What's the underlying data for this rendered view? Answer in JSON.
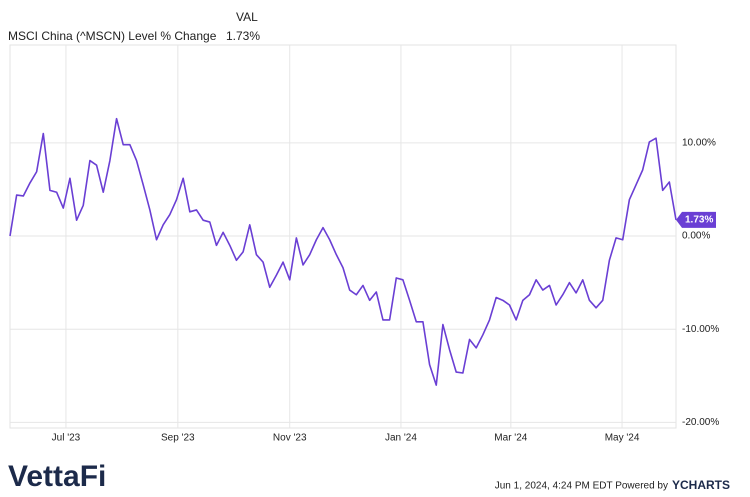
{
  "chart_data": {
    "type": "line",
    "legend_header": "VAL",
    "series": [
      {
        "name": "MSCI China (^MSCN) Level % Change",
        "color": "#6a3fd4",
        "last_label": "1.73%",
        "values": [
          0,
          4.4,
          4.3,
          5.7,
          6.9,
          11.0,
          4.9,
          4.7,
          3.0,
          6.2,
          1.7,
          3.3,
          8.1,
          7.6,
          4.7,
          8.1,
          12.6,
          9.8,
          9.8,
          8.1,
          5.5,
          2.8,
          -0.4,
          1.2,
          2.3,
          3.9,
          6.2,
          2.6,
          2.8,
          1.7,
          1.5,
          -1.0,
          0.4,
          -1.0,
          -2.6,
          -1.7,
          1.2,
          -2.0,
          -2.8,
          -5.5,
          -4.2,
          -2.8,
          -4.7,
          -0.2,
          -3.1,
          -2.0,
          -0.4,
          0.9,
          -0.4,
          -2.0,
          -3.4,
          -5.8,
          -6.3,
          -5.3,
          -6.9,
          -6.0,
          -9.0,
          -9.0,
          -4.5,
          -4.7,
          -6.9,
          -9.2,
          -9.2,
          -13.8,
          -16.0,
          -9.5,
          -12.2,
          -14.6,
          -14.7,
          -11.1,
          -12.0,
          -10.6,
          -9.0,
          -6.6,
          -6.9,
          -7.4,
          -9.0,
          -6.9,
          -6.3,
          -4.7,
          -5.8,
          -5.3,
          -7.4,
          -6.3,
          -5.0,
          -6.1,
          -4.7,
          -6.9,
          -7.7,
          -6.9,
          -2.6,
          -0.2,
          -0.4,
          3.9,
          5.5,
          7.1,
          10.1,
          10.5,
          4.9,
          5.8,
          1.73
        ]
      }
    ],
    "xlim": [
      0,
      100
    ],
    "xticks": [
      {
        "value": 8.4,
        "label": "Jul '23"
      },
      {
        "value": 25.2,
        "label": "Sep '23"
      },
      {
        "value": 42,
        "label": "Nov '23"
      },
      {
        "value": 58.7,
        "label": "Jan '24"
      },
      {
        "value": 75.2,
        "label": "Mar '24"
      },
      {
        "value": 91.9,
        "label": "May '24"
      }
    ],
    "ylim": [
      -20.6,
      20.5
    ],
    "yticks": [
      {
        "value": 10,
        "label": "10.00%"
      },
      {
        "value": 0,
        "label": "0.00%"
      },
      {
        "value": -10,
        "label": "-10.00%"
      },
      {
        "value": -20,
        "label": "-20.00%"
      }
    ],
    "grid": true,
    "footer_text": "Jun 1, 2024, 4:24 PM EDT Powered by",
    "footer_brand": "YCHARTS",
    "logo": "VettaFi"
  }
}
